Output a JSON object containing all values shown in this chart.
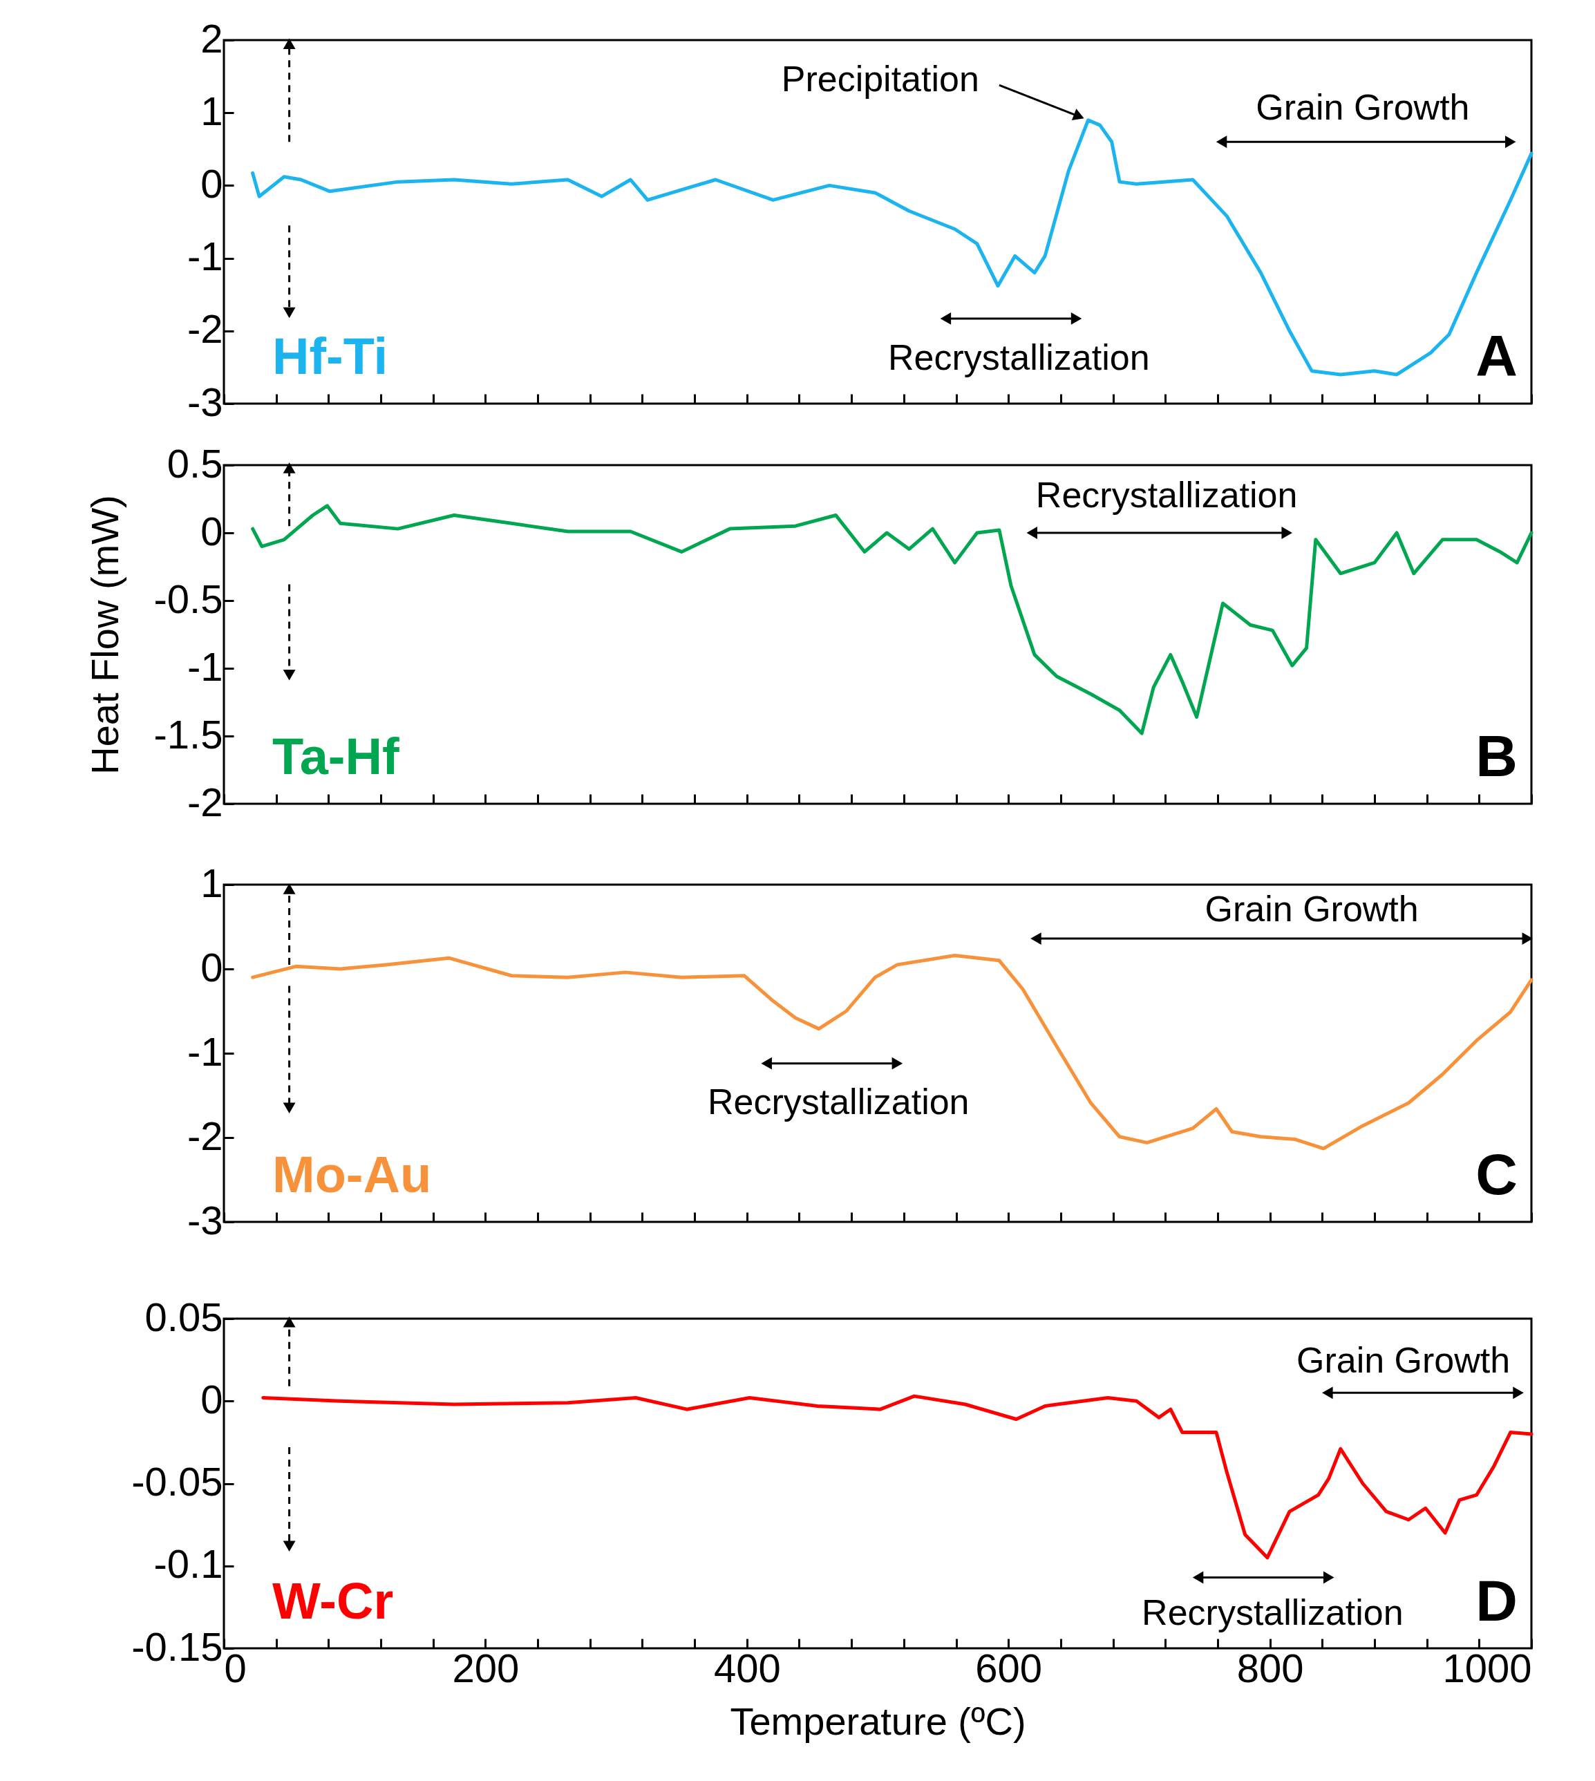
{
  "chart_data": [
    {
      "type": "line",
      "x": [
        22,
        27,
        46,
        59,
        81,
        133,
        176,
        220,
        263,
        289,
        311,
        324,
        376,
        420,
        463,
        498,
        524,
        559,
        576,
        592,
        605,
        620,
        628,
        646,
        661,
        670,
        679,
        685,
        698,
        741,
        767,
        793,
        815,
        832,
        854,
        880,
        897,
        923,
        937,
        958,
        984,
        1000
      ],
      "series": [
        {
          "name": "Hf-Ti",
          "color": "#1cb4ee",
          "values": [
            0.17,
            -0.15,
            0.12,
            0.08,
            -0.08,
            0.05,
            0.08,
            0.02,
            0.08,
            -0.15,
            0.08,
            -0.2,
            0.08,
            -0.2,
            0,
            -0.1,
            -0.35,
            -0.6,
            -0.8,
            -1.38,
            -0.97,
            -1.2,
            -0.97,
            0.2,
            0.9,
            0.83,
            0.6,
            0.05,
            0.02,
            0.08,
            -0.42,
            -1.2,
            -2,
            -2.55,
            -2.6,
            -2.55,
            -2.6,
            -2.3,
            -2.05,
            -1.2,
            -0.2,
            0.44
          ]
        }
      ],
      "xlim": [
        0,
        1000
      ],
      "xticks": [
        0,
        {
          "value": 40,
          "label": null
        },
        {
          "value": 80,
          "label": null
        },
        {
          "value": 120,
          "label": null
        },
        {
          "value": 160,
          "label": null
        },
        200,
        {
          "value": 240,
          "label": null
        },
        {
          "value": 280,
          "label": null
        },
        {
          "value": 320,
          "label": null
        },
        {
          "value": 360,
          "label": null
        },
        400,
        {
          "value": 440,
          "label": null
        },
        {
          "value": 480,
          "label": null
        },
        {
          "value": 520,
          "label": null
        },
        {
          "value": 560,
          "label": null
        },
        600,
        {
          "value": 640,
          "label": null
        },
        {
          "value": 680,
          "label": null
        },
        {
          "value": 720,
          "label": null
        },
        {
          "value": 760,
          "label": null
        },
        800,
        {
          "value": 840,
          "label": null
        },
        {
          "value": 880,
          "label": null
        },
        {
          "value": 920,
          "label": null
        },
        {
          "value": 960,
          "label": null
        },
        1000
      ],
      "ylim": [
        -3,
        2
      ],
      "yticks": [
        -3,
        -2,
        -1,
        0,
        1,
        2
      ],
      "tick_labels": "y",
      "annotations": [
        "Precipitation",
        "Grain Growth",
        "Recrystallization",
        "A"
      ]
    },
    {
      "type": "line",
      "x": [
        22,
        29,
        46,
        68,
        79,
        89,
        133,
        176,
        220,
        263,
        311,
        350,
        387,
        437,
        468,
        490,
        507,
        524,
        542,
        559,
        576,
        593,
        602,
        620,
        637,
        663,
        685,
        702,
        711,
        724,
        733,
        744,
        764,
        785,
        802,
        817,
        828,
        835,
        854,
        880,
        897,
        910,
        932,
        958,
        976,
        989,
        1000
      ],
      "series": [
        {
          "name": "Ta-Hf",
          "color": "#00a650",
          "values": [
            0.03,
            -0.1,
            -0.05,
            0.13,
            0.2,
            0.07,
            0.03,
            0.13,
            0.07,
            0.01,
            0.01,
            -0.14,
            0.03,
            0.05,
            0.13,
            -0.14,
            0,
            -0.12,
            0.03,
            -0.22,
            0,
            0.02,
            -0.39,
            -0.9,
            -1.06,
            -1.19,
            -1.31,
            -1.48,
            -1.14,
            -0.9,
            -1.1,
            -1.36,
            -0.52,
            -0.68,
            -0.72,
            -0.98,
            -0.85,
            -0.05,
            -0.3,
            -0.22,
            0,
            -0.3,
            -0.05,
            -0.05,
            -0.14,
            -0.22,
            0
          ]
        }
      ],
      "xlim": [
        0,
        1000
      ],
      "xticks": [
        0,
        {
          "value": 40,
          "label": null
        },
        {
          "value": 80,
          "label": null
        },
        {
          "value": 120,
          "label": null
        },
        {
          "value": 160,
          "label": null
        },
        200,
        {
          "value": 240,
          "label": null
        },
        {
          "value": 280,
          "label": null
        },
        {
          "value": 320,
          "label": null
        },
        {
          "value": 360,
          "label": null
        },
        400,
        {
          "value": 440,
          "label": null
        },
        {
          "value": 480,
          "label": null
        },
        {
          "value": 520,
          "label": null
        },
        {
          "value": 560,
          "label": null
        },
        600,
        {
          "value": 640,
          "label": null
        },
        {
          "value": 680,
          "label": null
        },
        {
          "value": 720,
          "label": null
        },
        {
          "value": 760,
          "label": null
        },
        800,
        {
          "value": 840,
          "label": null
        },
        {
          "value": 880,
          "label": null
        },
        {
          "value": 920,
          "label": null
        },
        {
          "value": 960,
          "label": null
        },
        1000
      ],
      "ylim": [
        -2,
        0.5
      ],
      "yticks": [
        -2,
        -1.5,
        -1,
        -0.5,
        0,
        0.5
      ],
      "tick_labels": "y",
      "ylabel": "Heat Flow (mW)",
      "annotations": [
        "Recrystallization",
        "B"
      ]
    },
    {
      "type": "line",
      "x": [
        22,
        55,
        89,
        124,
        172,
        220,
        263,
        307,
        350,
        398,
        420,
        437,
        455,
        476,
        498,
        515,
        559,
        593,
        611,
        637,
        663,
        685,
        706,
        741,
        759,
        771,
        793,
        819,
        841,
        871,
        906,
        932,
        958,
        984,
        1000
      ],
      "series": [
        {
          "name": "Mo-Au",
          "color": "#f7923a",
          "values": [
            -0.1,
            0.03,
            0,
            0.05,
            0.13,
            -0.08,
            -0.1,
            -0.04,
            -0.1,
            -0.08,
            -0.38,
            -0.58,
            -0.71,
            -0.5,
            -0.1,
            0.05,
            0.16,
            0.1,
            -0.24,
            -0.92,
            -1.59,
            -1.99,
            -2.06,
            -1.89,
            -1.66,
            -1.93,
            -1.99,
            -2.02,
            -2.13,
            -1.86,
            -1.59,
            -1.25,
            -0.85,
            -0.51,
            -0.13
          ]
        }
      ],
      "xlim": [
        0,
        1000
      ],
      "xticks": [
        0,
        {
          "value": 40,
          "label": null
        },
        {
          "value": 80,
          "label": null
        },
        {
          "value": 120,
          "label": null
        },
        {
          "value": 160,
          "label": null
        },
        200,
        {
          "value": 240,
          "label": null
        },
        {
          "value": 280,
          "label": null
        },
        {
          "value": 320,
          "label": null
        },
        {
          "value": 360,
          "label": null
        },
        400,
        {
          "value": 440,
          "label": null
        },
        {
          "value": 480,
          "label": null
        },
        {
          "value": 520,
          "label": null
        },
        {
          "value": 560,
          "label": null
        },
        600,
        {
          "value": 640,
          "label": null
        },
        {
          "value": 680,
          "label": null
        },
        {
          "value": 720,
          "label": null
        },
        {
          "value": 760,
          "label": null
        },
        800,
        {
          "value": 840,
          "label": null
        },
        {
          "value": 880,
          "label": null
        },
        {
          "value": 920,
          "label": null
        },
        {
          "value": 960,
          "label": null
        },
        1000
      ],
      "ylim": [
        -3,
        1
      ],
      "yticks": [
        -3,
        -2,
        -1,
        0,
        1
      ],
      "tick_labels": "y",
      "annotations": [
        "Grain Growth",
        "Recrystallization",
        "C"
      ]
    },
    {
      "type": "line",
      "x": [
        30,
        89,
        176,
        263,
        315,
        354,
        402,
        454,
        502,
        528,
        567,
        606,
        628,
        676,
        698,
        715,
        724,
        733,
        759,
        767,
        781,
        798,
        815,
        837,
        845,
        854,
        871,
        889,
        906,
        919,
        934,
        945,
        958,
        971,
        984,
        1000
      ],
      "series": [
        {
          "name": "W-Cr",
          "color": "#ff0000",
          "values": [
            0.002,
            0,
            -0.002,
            -0.001,
            0.002,
            -0.005,
            0.002,
            -0.003,
            -0.005,
            0.003,
            -0.002,
            -0.011,
            -0.003,
            0.002,
            0,
            -0.01,
            -0.005,
            -0.019,
            -0.019,
            -0.043,
            -0.081,
            -0.095,
            -0.067,
            -0.057,
            -0.047,
            -0.029,
            -0.05,
            -0.067,
            -0.072,
            -0.065,
            -0.08,
            -0.06,
            -0.057,
            -0.04,
            -0.019,
            -0.02
          ]
        }
      ],
      "xlim": [
        0,
        1000
      ],
      "xticks": [
        0,
        {
          "value": 40,
          "label": null
        },
        {
          "value": 80,
          "label": null
        },
        {
          "value": 120,
          "label": null
        },
        {
          "value": 160,
          "label": null
        },
        200,
        {
          "value": 240,
          "label": null
        },
        {
          "value": 280,
          "label": null
        },
        {
          "value": 320,
          "label": null
        },
        {
          "value": 360,
          "label": null
        },
        400,
        {
          "value": 440,
          "label": null
        },
        {
          "value": 480,
          "label": null
        },
        {
          "value": 520,
          "label": null
        },
        {
          "value": 560,
          "label": null
        },
        600,
        {
          "value": 640,
          "label": null
        },
        {
          "value": 680,
          "label": null
        },
        {
          "value": 720,
          "label": null
        },
        {
          "value": 760,
          "label": null
        },
        800,
        {
          "value": 840,
          "label": null
        },
        {
          "value": 880,
          "label": null
        },
        {
          "value": 920,
          "label": null
        },
        {
          "value": 960,
          "label": null
        },
        1000
      ],
      "ylim": [
        -0.15,
        0.05
      ],
      "yticks": [
        -0.15,
        -0.1,
        -0.05,
        0,
        0.05
      ],
      "xlabel": "Temperature (ºC)",
      "annotations": [
        "Grain Growth",
        "Recrystallization",
        "D"
      ]
    }
  ]
}
